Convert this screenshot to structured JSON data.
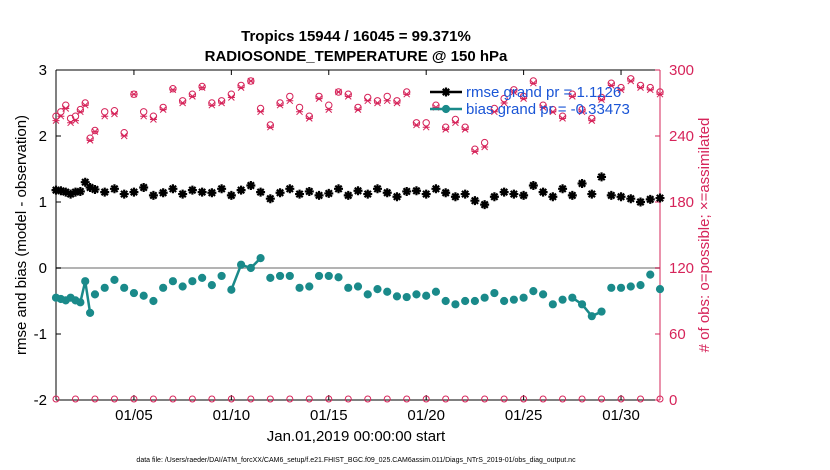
{
  "chart_data": {
    "type": "line",
    "title": "Tropics 15944 / 16045 = 99.371%",
    "subtitle": "RADIOSONDE_TEMPERATURE @ 150 hPa",
    "xlabel": "Jan.01,2019 00:00:00 start",
    "ylabel_left": "rmse and bias (model - observation)",
    "ylabel_right": "# of obs: o=possible; ×=assimilated",
    "footer": "data file: /Users/raeder/DAI/ATM_forcXX/CAM6_setup/f.e21.FHIST_BGC.f09_025.CAM6assim.011/Diags_NTrS_2019-01/obs_diag_output.nc",
    "xlim": [
      1,
      32
    ],
    "ylim_left": [
      -2,
      3
    ],
    "ylim_right": [
      0,
      300
    ],
    "x_ticks": [
      5,
      10,
      15,
      20,
      25,
      30
    ],
    "x_tick_labels": [
      "01/05",
      "01/10",
      "01/15",
      "01/20",
      "01/25",
      "01/30"
    ],
    "y_left_ticks": [
      -2,
      -1,
      0,
      1,
      2,
      3
    ],
    "y_left_tick_labels": [
      "-2",
      "-1",
      "0",
      "1",
      "2",
      "3"
    ],
    "y_right_ticks": [
      0,
      60,
      120,
      180,
      240,
      300
    ],
    "y_right_tick_labels": [
      "0",
      "60",
      "120",
      "180",
      "240",
      "300"
    ],
    "zero_line": 0,
    "colors": {
      "rmse": "#000000",
      "bias": "#1a8a8a",
      "obs": "#d6245a",
      "legend_text": "#1a55d6",
      "zero": "#b3b3b3"
    },
    "x": [
      1.0,
      1.25,
      1.5,
      1.75,
      2.0,
      2.25,
      2.5,
      2.75,
      3.0,
      3.5,
      4.0,
      4.5,
      5.0,
      5.5,
      6.0,
      6.5,
      7.0,
      7.5,
      8.0,
      8.5,
      9.0,
      9.5,
      10.0,
      10.5,
      11.0,
      11.5,
      12.0,
      12.5,
      13.0,
      13.5,
      14.0,
      14.5,
      15.0,
      15.5,
      16.0,
      16.5,
      17.0,
      17.5,
      18.0,
      18.5,
      19.0,
      19.5,
      20.0,
      20.5,
      21.0,
      21.5,
      22.0,
      22.5,
      23.0,
      23.5,
      24.0,
      24.5,
      25.0,
      25.5,
      26.0,
      26.5,
      27.0,
      27.5,
      28.0,
      28.5,
      29.0,
      29.5,
      30.0,
      30.5,
      31.0,
      31.5,
      32.0
    ],
    "series": [
      {
        "name": "rmse grand pr = 1.1126",
        "values": [
          1.18,
          1.17,
          1.15,
          1.12,
          1.15,
          1.16,
          1.3,
          1.22,
          1.19,
          1.15,
          1.2,
          1.12,
          1.15,
          1.22,
          1.1,
          1.14,
          1.2,
          1.12,
          1.18,
          1.15,
          1.14,
          1.2,
          1.1,
          1.18,
          1.25,
          1.15,
          1.05,
          1.14,
          1.2,
          1.12,
          1.16,
          1.1,
          1.13,
          1.2,
          1.1,
          1.17,
          1.12,
          1.2,
          1.14,
          1.08,
          1.16,
          1.17,
          1.12,
          1.2,
          1.14,
          1.08,
          1.12,
          1.02,
          0.96,
          1.08,
          1.15,
          1.12,
          1.1,
          1.25,
          1.15,
          1.08,
          1.2,
          1.1,
          1.28,
          1.12,
          1.38,
          1.1,
          1.08,
          1.05,
          1.0,
          1.04,
          1.06
        ]
      },
      {
        "name": "bias grand pr = -0.33473",
        "values": [
          -0.45,
          -0.47,
          -0.49,
          -0.45,
          -0.49,
          -0.52,
          -0.2,
          -0.68,
          -0.4,
          -0.3,
          -0.18,
          -0.3,
          -0.38,
          -0.42,
          -0.5,
          -0.3,
          -0.2,
          -0.28,
          -0.2,
          -0.15,
          -0.26,
          -0.12,
          -0.33,
          0.05,
          0.0,
          0.15,
          -0.15,
          -0.12,
          -0.12,
          -0.3,
          -0.28,
          -0.12,
          -0.12,
          -0.14,
          -0.3,
          -0.28,
          -0.4,
          -0.32,
          -0.36,
          -0.43,
          -0.44,
          -0.4,
          -0.42,
          -0.36,
          -0.5,
          -0.55,
          -0.5,
          -0.5,
          -0.45,
          -0.38,
          -0.5,
          -0.48,
          -0.45,
          -0.35,
          -0.4,
          -0.55,
          -0.48,
          -0.45,
          -0.55,
          -0.73,
          -0.66,
          -0.3,
          -0.3,
          -0.28,
          -0.26,
          -0.1,
          -0.32
        ]
      }
    ],
    "obs_possible": [
      258,
      262,
      268,
      256,
      258,
      264,
      270,
      238,
      245,
      262,
      263,
      243,
      278,
      262,
      258,
      266,
      283,
      272,
      278,
      285,
      270,
      272,
      278,
      286,
      290,
      265,
      250,
      270,
      276,
      266,
      258,
      276,
      268,
      280,
      278,
      266,
      275,
      272,
      276,
      272,
      280,
      252,
      252,
      268,
      248,
      255,
      248,
      228,
      234,
      265,
      274,
      282,
      276,
      290,
      268,
      264,
      258,
      278,
      264,
      256,
      275,
      288,
      284,
      292,
      286,
      284,
      280
    ],
    "obs_assimilated": [
      254,
      258,
      265,
      252,
      254,
      262,
      268,
      236,
      244,
      258,
      260,
      240,
      278,
      258,
      255,
      264,
      282,
      270,
      276,
      284,
      268,
      270,
      275,
      284,
      290,
      262,
      248,
      268,
      272,
      262,
      256,
      274,
      264,
      280,
      276,
      264,
      272,
      270,
      272,
      270,
      278,
      250,
      248,
      266,
      246,
      252,
      246,
      226,
      230,
      262,
      270,
      280,
      274,
      288,
      266,
      262,
      256,
      276,
      262,
      254,
      273,
      286,
      282,
      290,
      284,
      282,
      278
    ],
    "low_obs_possible": [
      0,
      0,
      0,
      0,
      0,
      0,
      0,
      0,
      0,
      0,
      0,
      0,
      0,
      0,
      0,
      0,
      0,
      0,
      0,
      0,
      0,
      0,
      0,
      0,
      0,
      0,
      0,
      0,
      0,
      0,
      0,
      0
    ],
    "legend": [
      {
        "label": "rmse grand pr = 1.1126",
        "marker": "star",
        "color": "#000000"
      },
      {
        "label": "bias grand pr = -0.33473",
        "marker": "circle",
        "color": "#1a8a8a"
      }
    ]
  }
}
